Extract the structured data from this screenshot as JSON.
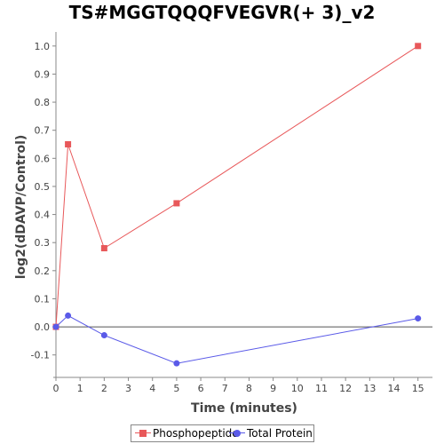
{
  "chart_data": {
    "type": "line",
    "title": "TS#MGGTQQQFVEGVR(+ 3)_v2",
    "xlabel": "Time (minutes)",
    "ylabel": "log2(dDAVP/Control)",
    "xlim": [
      0,
      15.6
    ],
    "ylim": [
      -0.18,
      1.05
    ],
    "xticks": [
      0,
      1,
      2,
      3,
      4,
      5,
      6,
      7,
      8,
      9,
      10,
      11,
      12,
      13,
      14,
      15
    ],
    "yticks": [
      -0.1,
      0.0,
      0.1,
      0.2,
      0.3,
      0.4,
      0.5,
      0.6,
      0.7,
      0.8,
      0.9,
      1.0
    ],
    "ytick_labels": [
      "-0.1",
      "0.0",
      "0.1",
      "0.2",
      "0.3",
      "0.4",
      "0.5",
      "0.6",
      "0.7",
      "0.8",
      "0.9",
      "1.0"
    ],
    "zero_line": true,
    "grid": false,
    "legend_position": "bottom",
    "series": [
      {
        "name": "Phosphopeptide",
        "color": "#e8585a",
        "marker": "square",
        "x": [
          0,
          0.5,
          2,
          5,
          15
        ],
        "y": [
          0.0,
          0.65,
          0.28,
          0.44,
          1.0
        ]
      },
      {
        "name": "Total Protein",
        "color": "#5a5ae8",
        "marker": "circle",
        "x": [
          0,
          0.5,
          2,
          5,
          15
        ],
        "y": [
          0.0,
          0.04,
          -0.03,
          -0.13,
          0.03
        ]
      }
    ]
  }
}
